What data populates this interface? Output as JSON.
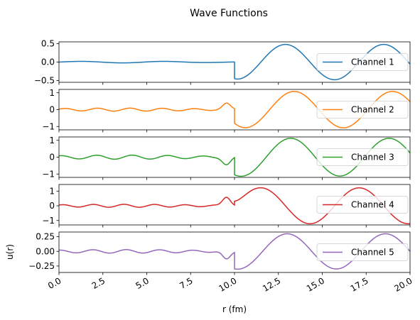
{
  "chart_data": {
    "type": "line",
    "title": "Wave Functions",
    "xlabel": "r (fm)",
    "ylabel": "u(r)",
    "xlim": [
      0,
      20
    ],
    "x_ticks": [
      "0.0",
      "2.5",
      "5.0",
      "7.5",
      "10.0",
      "12.5",
      "15.0",
      "17.5",
      "20.0"
    ],
    "grid": false,
    "legend_position": "right",
    "panels": [
      {
        "name": "Channel 1",
        "color": "#1f77b4",
        "ylim": [
          -0.55,
          0.55
        ],
        "y_ticks": [
          {
            "v": 0.5,
            "label": "0.5"
          },
          {
            "v": 0.0,
            "label": "0.0"
          },
          {
            "v": -0.5,
            "label": "−0.5"
          }
        ],
        "inner": {
          "amp": 0.022,
          "k": 1.3,
          "phase": 0.0,
          "ramp": 0.0
        },
        "outer": {
          "amp": 0.48,
          "start": -0.45,
          "peak1_x": 12.9
        },
        "discontinuity_x": 10.0
      },
      {
        "name": "Channel 2",
        "color": "#ff7f0e",
        "ylim": [
          -1.2,
          1.2
        ],
        "y_ticks": [
          {
            "v": 1,
            "label": "1"
          },
          {
            "v": 0,
            "label": "0"
          },
          {
            "v": -1,
            "label": "−1"
          }
        ],
        "inner": {
          "amp": 0.09,
          "k": 3.4,
          "phase": 0.4,
          "ramp": 0.35
        },
        "outer": {
          "amp": 1.08,
          "start": -0.8,
          "peak1_x": 13.4
        },
        "discontinuity_x": 10.0
      },
      {
        "name": "Channel 3",
        "color": "#2ca02c",
        "ylim": [
          -1.2,
          1.2
        ],
        "y_ticks": [
          {
            "v": 1,
            "label": "1"
          },
          {
            "v": 0,
            "label": "0"
          },
          {
            "v": -1,
            "label": "−1"
          }
        ],
        "inner": {
          "amp": 0.12,
          "k": 3.1,
          "phase": 1.2,
          "ramp": 0.42
        },
        "outer": {
          "amp": 1.12,
          "start": -1.05,
          "peak1_x": 13.2
        },
        "discontinuity_x": 10.0
      },
      {
        "name": "Channel 4",
        "color": "#d62728",
        "ylim": [
          -1.3,
          1.45
        ],
        "y_ticks": [
          {
            "v": 1,
            "label": "1"
          },
          {
            "v": 0,
            "label": "0"
          },
          {
            "v": -1,
            "label": "−1"
          }
        ],
        "inner": {
          "amp": 0.1,
          "k": 3.6,
          "phase": 0.8,
          "ramp": 0.6
        },
        "outer": {
          "amp": 1.22,
          "start": 0.32,
          "peak1_x": 11.5
        },
        "discontinuity_x": 10.0
      },
      {
        "name": "Channel 5",
        "color": "#9467bd",
        "ylim": [
          -0.36,
          0.33
        ],
        "y_ticks": [
          {
            "v": 0.25,
            "label": "0.25"
          },
          {
            "v": 0.0,
            "label": "0.00"
          },
          {
            "v": -0.25,
            "label": "−0.25"
          }
        ],
        "inner": {
          "amp": 0.03,
          "k": 3.3,
          "phase": 1.5,
          "ramp": 0.14
        },
        "outer": {
          "amp": 0.3,
          "start": -0.3,
          "peak1_x": 13.0
        },
        "discontinuity_x": 10.0
      }
    ]
  }
}
